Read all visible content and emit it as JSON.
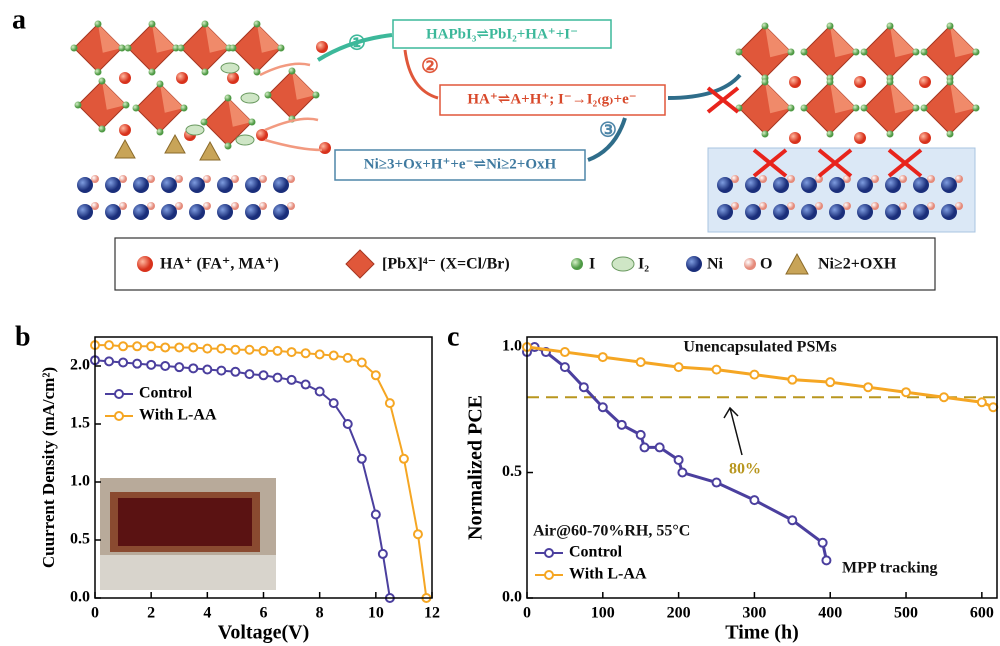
{
  "panel_a": {
    "label": "a",
    "steps": [
      "①",
      "②",
      "③"
    ],
    "reactions": [
      "HAPbI₃⇌PbI₂+HA⁺+I⁻",
      "HA⁺⇌A+H⁺; I⁻→I₂₍g₎+e⁻",
      "Ni≥3+Ox+H⁺+e⁻⇌Ni≥2+OxH"
    ],
    "legend": [
      "HA⁺ (FA⁺, MA⁺)",
      "[PbX]⁴⁻ (X=Cl/Br)",
      "I",
      "I₂",
      "Ni",
      "O",
      "Ni≥2+OXH"
    ]
  },
  "chart_data": [
    {
      "type": "line",
      "label": "b",
      "xlabel": "Voltage(V)",
      "ylabel": "Cuurrent Density (mA/cm²)",
      "xlim": [
        0,
        12
      ],
      "xticks": [
        0,
        2,
        4,
        6,
        8,
        10,
        12
      ],
      "ylim": [
        0,
        2.25
      ],
      "yticks": [
        {
          "value": 0,
          "label": "0.0"
        },
        0.5,
        {
          "value": 1,
          "label": "1.0"
        },
        1.5,
        {
          "value": 2,
          "label": "2.0"
        }
      ],
      "legend": "upper left",
      "annotations": [],
      "series": [
        {
          "name": "Control",
          "color": "#4b3f9e",
          "x": [
            0,
            0.5,
            1,
            1.5,
            2,
            2.5,
            3,
            3.5,
            4,
            4.5,
            5,
            5.5,
            6,
            6.5,
            7,
            7.5,
            8,
            8.5,
            9,
            9.5,
            10,
            10.25,
            10.5
          ],
          "values": [
            2.05,
            2.04,
            2.03,
            2.02,
            2.01,
            2.0,
            1.99,
            1.98,
            1.97,
            1.96,
            1.95,
            1.93,
            1.92,
            1.9,
            1.88,
            1.84,
            1.78,
            1.68,
            1.5,
            1.2,
            0.72,
            0.38,
            0
          ]
        },
        {
          "name": "With L-AA",
          "color": "#f5a623",
          "x": [
            0,
            0.5,
            1,
            1.5,
            2,
            2.5,
            3,
            3.5,
            4,
            4.5,
            5,
            5.5,
            6,
            6.5,
            7,
            7.5,
            8,
            8.5,
            9,
            9.5,
            10,
            10.5,
            11,
            11.5,
            11.8
          ],
          "values": [
            2.18,
            2.18,
            2.17,
            2.17,
            2.17,
            2.16,
            2.16,
            2.16,
            2.15,
            2.15,
            2.14,
            2.14,
            2.13,
            2.13,
            2.12,
            2.11,
            2.1,
            2.09,
            2.07,
            2.03,
            1.92,
            1.68,
            1.2,
            0.55,
            0
          ]
        }
      ]
    },
    {
      "type": "line",
      "label": "c",
      "xlabel": "Time (h)",
      "ylabel": "Normalized PCE",
      "xlim": [
        0,
        620
      ],
      "xticks": [
        0,
        100,
        200,
        300,
        400,
        500,
        600
      ],
      "ylim": [
        0,
        1.04
      ],
      "yticks": [
        {
          "value": 0,
          "label": "0.0"
        },
        0.5,
        {
          "value": 1,
          "label": "1.0"
        }
      ],
      "legend": "lower left",
      "reference_line": 0.8,
      "reference_color": "#b8961e",
      "annotations": [
        "Unencapsulated PSMs",
        "80%",
        "Air@60-70%RH, 55°C",
        "MPP tracking"
      ],
      "series": [
        {
          "name": "Control",
          "color": "#4b3f9e",
          "x": [
            0,
            10,
            25,
            50,
            75,
            100,
            125,
            150,
            155,
            175,
            200,
            205,
            250,
            300,
            350,
            390,
            395
          ],
          "values": [
            0.98,
            1.0,
            0.98,
            0.92,
            0.84,
            0.76,
            0.69,
            0.65,
            0.6,
            0.6,
            0.55,
            0.5,
            0.46,
            0.39,
            0.31,
            0.22,
            0.15
          ]
        },
        {
          "name": "With L-AA",
          "color": "#f5a623",
          "x": [
            0,
            50,
            100,
            150,
            200,
            250,
            300,
            350,
            400,
            450,
            500,
            550,
            600,
            615
          ],
          "values": [
            1.0,
            0.98,
            0.96,
            0.94,
            0.92,
            0.91,
            0.89,
            0.87,
            0.86,
            0.84,
            0.82,
            0.8,
            0.78,
            0.76
          ]
        }
      ]
    }
  ]
}
